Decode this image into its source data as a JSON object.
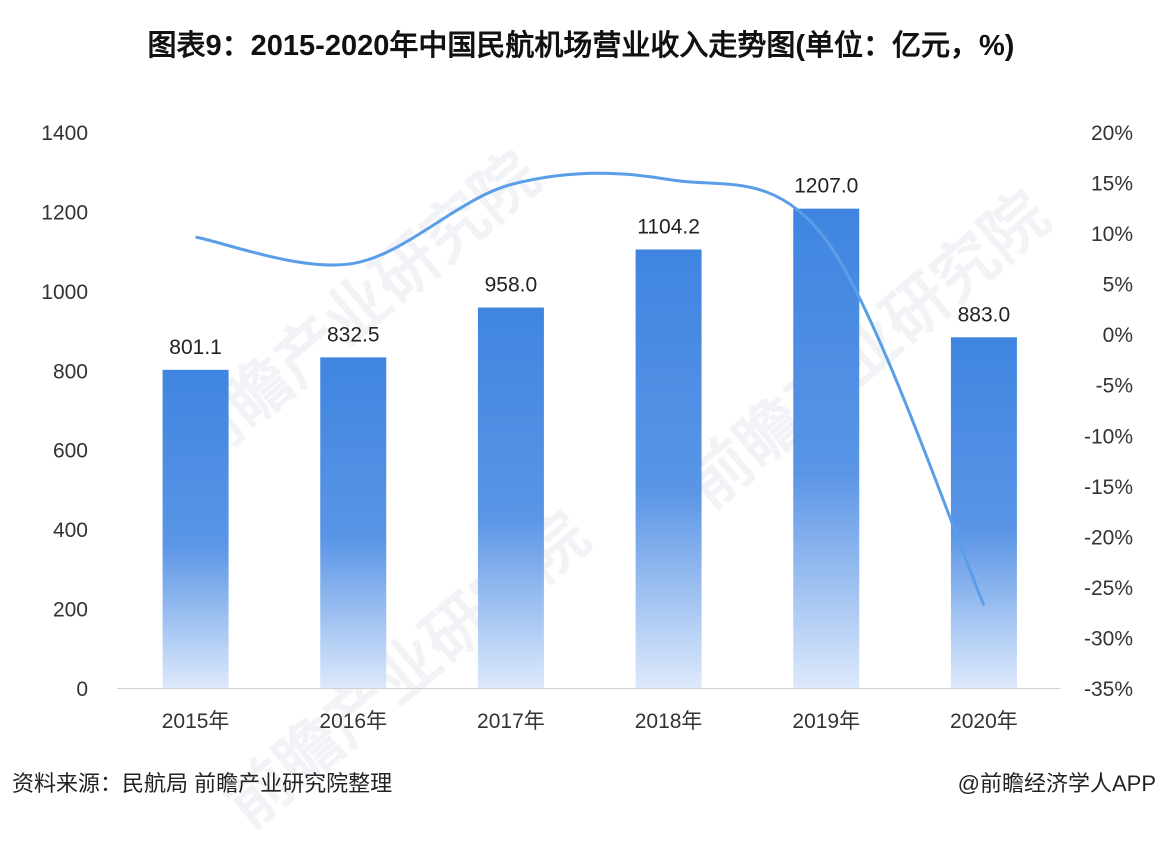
{
  "title": "图表9：2015-2020年中国民航机场营业收入走势图(单位：亿元，%)",
  "source": "资料来源：民航局 前瞻产业研究院整理",
  "credit": "@前瞻经济学人APP",
  "watermark": "前瞻产业研究院",
  "chart_data": {
    "type": "bar+line",
    "title": "图表9：2015-2020年中国民航机场营业收入走势图(单位：亿元，%)",
    "categories": [
      "2015年",
      "2016年",
      "2017年",
      "2018年",
      "2019年",
      "2020年"
    ],
    "series": [
      {
        "type": "bar",
        "axis": "left",
        "values": [
          801.1,
          832.5,
          958.0,
          1104.2,
          1207.0,
          883.0
        ],
        "labels": [
          "801.1",
          "832.5",
          "958.0",
          "1104.2",
          "1207.0",
          "883.0"
        ],
        "color": "#3f85e0"
      },
      {
        "type": "line",
        "axis": "right",
        "values": [
          9.6,
          7.0,
          14.8,
          15.3,
          9.3,
          -26.8
        ],
        "color": "#5a9ee8",
        "smooth": true
      }
    ],
    "y_left": {
      "range": [
        0,
        1400
      ],
      "ticks": [
        "0",
        "200",
        "400",
        "600",
        "800",
        "1000",
        "1200",
        "1400"
      ]
    },
    "y_right": {
      "range": [
        -35,
        20
      ],
      "ticks": [
        "-35%",
        "-30%",
        "-25%",
        "-20%",
        "-15%",
        "-10%",
        "-5%",
        "0%",
        "5%",
        "10%",
        "15%",
        "20%"
      ]
    },
    "grid": false,
    "legend": "none"
  }
}
